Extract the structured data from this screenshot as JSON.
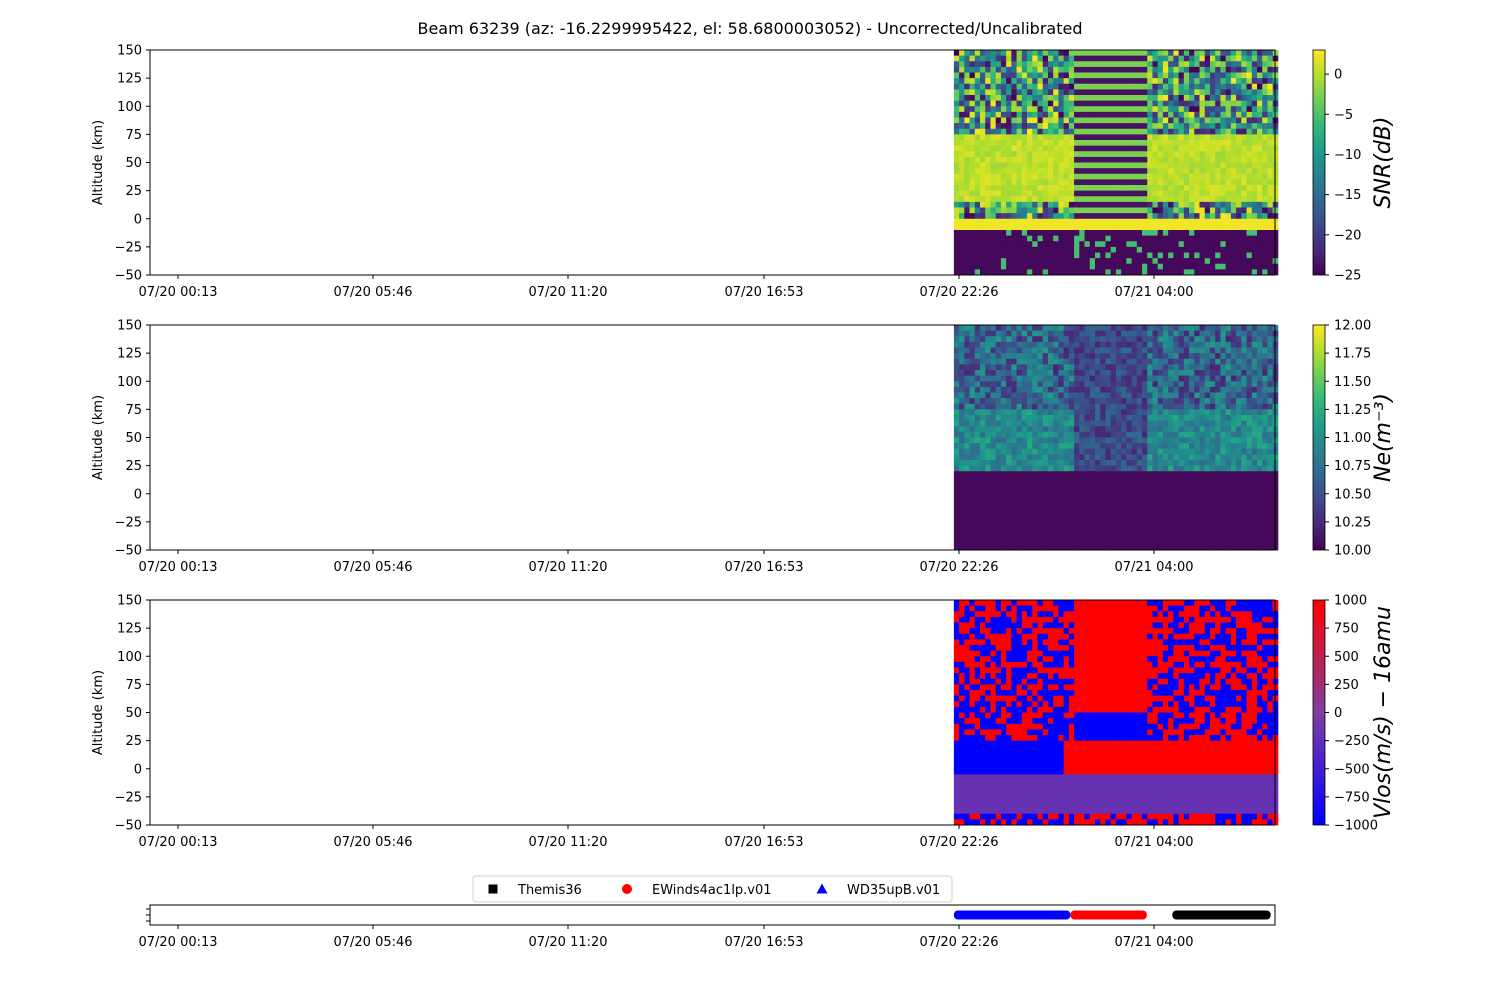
{
  "chart_data": {
    "type": "heatmap",
    "title": "Beam 63239 (az: -16.2299995422, el: 58.6800003052) - Uncorrected/Uncalibrated",
    "x_tick_labels": [
      "07/20 00:13",
      "07/20 05:46",
      "07/20 11:20",
      "07/20 16:53",
      "07/20 22:26",
      "07/21 04:00"
    ],
    "x_data_start_hours": 21.8,
    "x_data_end_hours": 30.7,
    "panels": [
      {
        "ylabel": "Altitude (km)",
        "ylim": [
          -50,
          150
        ],
        "y_ticks": [
          "150",
          "125",
          "100",
          "75",
          "50",
          "25",
          "0",
          "−25",
          "−50"
        ],
        "colorbar_label": "SNR(dB)",
        "colorbar_ticks": [
          "0",
          "−5",
          "−10",
          "−15",
          "−20",
          "−25"
        ],
        "colorbar_range": [
          -25,
          3
        ],
        "colormap": "viridis"
      },
      {
        "ylabel": "Altitude (km)",
        "ylim": [
          -50,
          150
        ],
        "y_ticks": [
          "150",
          "125",
          "100",
          "75",
          "50",
          "25",
          "0",
          "−25",
          "−50"
        ],
        "colorbar_label": "Ne(m⁻³)",
        "colorbar_ticks": [
          "12.00",
          "11.75",
          "11.50",
          "11.25",
          "11.00",
          "10.75",
          "10.50",
          "10.25",
          "10.00"
        ],
        "colorbar_range": [
          10,
          12
        ],
        "colormap": "viridis"
      },
      {
        "ylabel": "Altitude (km)",
        "ylim": [
          -50,
          150
        ],
        "y_ticks": [
          "150",
          "125",
          "100",
          "75",
          "50",
          "25",
          "0",
          "−25",
          "−50"
        ],
        "colorbar_label": "Vlos(m/s) − 16amu",
        "colorbar_ticks": [
          "1000",
          "750",
          "500",
          "250",
          "0",
          "−250",
          "−500",
          "−750",
          "−1000"
        ],
        "colorbar_range": [
          -1000,
          1000
        ],
        "colormap": "bwr"
      }
    ],
    "experiments": [
      {
        "name": "Themis36",
        "marker": "square",
        "color": "#000000",
        "start_hours": 27.8,
        "end_hours": 30.5
      },
      {
        "name": "EWinds4ac1lp.v01",
        "marker": "circle",
        "color": "#ff0000",
        "start_hours": 25.0,
        "end_hours": 27.1
      },
      {
        "name": "WD35upB.v01",
        "marker": "triangle",
        "color": "#0000ff",
        "start_hours": 21.8,
        "end_hours": 25.0
      }
    ]
  }
}
